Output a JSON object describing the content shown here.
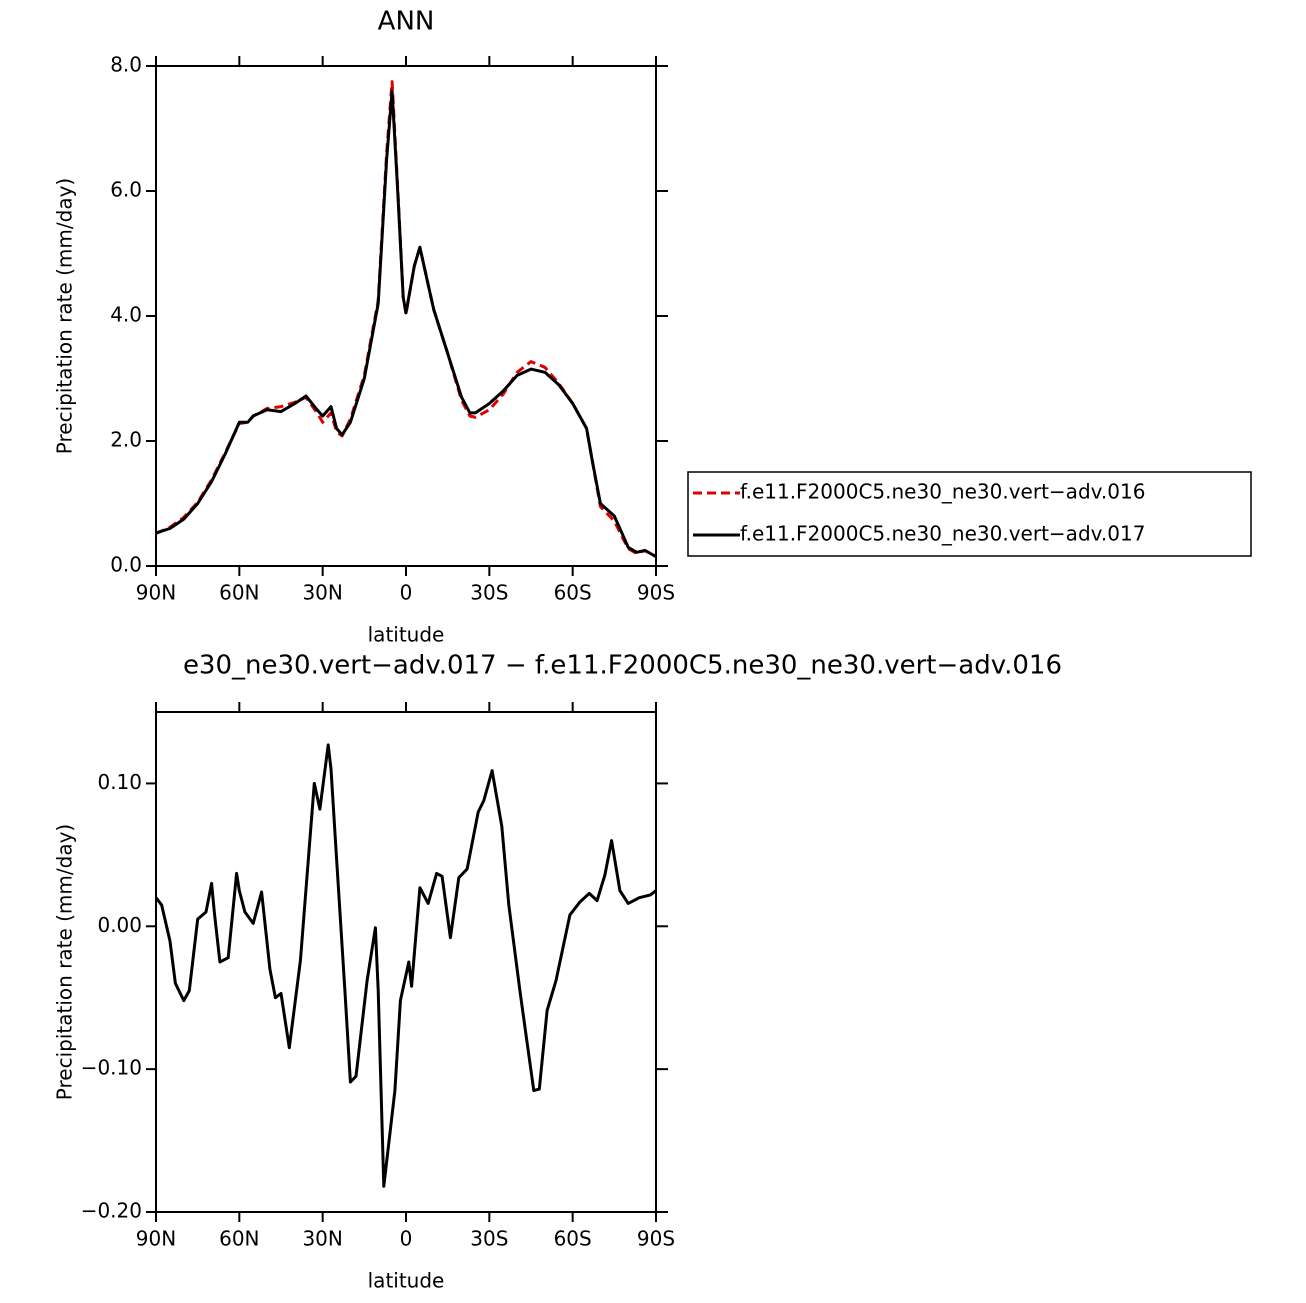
{
  "chart_data": [
    {
      "type": "line",
      "title": "ANN",
      "xlabel": "latitude",
      "ylabel": "Precipitation rate (mm/day)",
      "x": [
        90,
        85,
        80,
        75,
        70,
        65,
        62,
        60,
        57,
        55,
        50,
        45,
        40,
        36,
        32,
        30,
        27,
        25,
        23,
        20,
        15,
        10,
        7,
        5,
        3,
        1,
        0,
        -3,
        -5,
        -8,
        -10,
        -15,
        -20,
        -23,
        -25,
        -30,
        -35,
        -40,
        -45,
        -50,
        -55,
        -60,
        -65,
        -67,
        -70,
        -75,
        -78,
        -80,
        -83,
        -86,
        -88,
        -90
      ],
      "series": [
        {
          "name": "f.e11.F2000C5.ne30_ne30.vert−adv.016",
          "color": "#e00000",
          "dashed": true,
          "values": [
            0.52,
            0.62,
            0.78,
            1.02,
            1.38,
            1.82,
            2.1,
            2.28,
            2.3,
            2.4,
            2.52,
            2.55,
            2.62,
            2.7,
            2.45,
            2.3,
            2.45,
            2.15,
            2.08,
            2.35,
            3.05,
            4.25,
            6.6,
            7.75,
            6.05,
            4.3,
            4.03,
            4.8,
            5.1,
            4.5,
            4.1,
            3.4,
            2.65,
            2.4,
            2.38,
            2.5,
            2.75,
            3.1,
            3.27,
            3.18,
            2.92,
            2.6,
            2.2,
            1.7,
            0.95,
            0.72,
            0.45,
            0.28,
            0.2,
            0.25,
            0.2,
            0.15
          ]
        },
        {
          "name": "f.e11.F2000C5.ne30_ne30.vert−adv.017",
          "color": "#000000",
          "dashed": false,
          "values": [
            0.53,
            0.6,
            0.75,
            1.0,
            1.35,
            1.8,
            2.1,
            2.3,
            2.3,
            2.4,
            2.5,
            2.47,
            2.6,
            2.72,
            2.5,
            2.4,
            2.55,
            2.2,
            2.1,
            2.3,
            3.0,
            4.2,
            6.5,
            7.6,
            6.0,
            4.3,
            4.05,
            4.8,
            5.1,
            4.5,
            4.1,
            3.4,
            2.7,
            2.45,
            2.45,
            2.6,
            2.8,
            3.05,
            3.15,
            3.1,
            2.9,
            2.6,
            2.2,
            1.7,
            1.0,
            0.8,
            0.5,
            0.3,
            0.22,
            0.25,
            0.2,
            0.15
          ]
        }
      ],
      "xlim": [
        90,
        -90
      ],
      "ylim": [
        0,
        8
      ],
      "xticks": [
        {
          "value": 90,
          "label": "90N"
        },
        {
          "value": 60,
          "label": "60N"
        },
        {
          "value": 30,
          "label": "30N"
        },
        0,
        {
          "value": -30,
          "label": "30S"
        },
        {
          "value": -60,
          "label": "60S"
        },
        {
          "value": -90,
          "label": "90S"
        }
      ],
      "yticks": [
        {
          "value": 0,
          "label": "0.0"
        },
        {
          "value": 2,
          "label": "2.0"
        },
        {
          "value": 4,
          "label": "4.0"
        },
        {
          "value": 6,
          "label": "6.0"
        },
        {
          "value": 8,
          "label": "8.0"
        }
      ],
      "legend": "right"
    },
    {
      "type": "line",
      "title": "e30_ne30.vert−adv.017 − f.e11.F2000C5.ne30_ne30.vert−adv.016",
      "xlabel": "latitude",
      "ylabel": "Precipitation rate (mm/day)",
      "x": [
        90,
        88,
        85,
        83,
        80,
        78,
        75,
        72,
        70,
        69,
        67,
        64,
        61,
        60,
        58,
        55,
        52,
        49,
        47,
        45,
        42,
        38,
        33,
        31,
        28,
        27,
        25,
        22,
        20,
        18,
        14,
        11,
        10,
        8,
        4,
        2,
        -1,
        -2,
        -5,
        -8,
        -11,
        -13,
        -16,
        -19,
        -22,
        -26,
        -28,
        -31,
        -34.5,
        -37,
        -41,
        -43.5,
        -46,
        -48,
        -50.8,
        -54,
        -59,
        -62.6,
        -66,
        -68.8,
        -71.6,
        -74,
        -77,
        -80,
        -84,
        -88,
        -90
      ],
      "series": [
        {
          "color": "#000000",
          "dashed": false,
          "values": [
            0.02,
            0.015,
            -0.01,
            -0.04,
            -0.052,
            -0.045,
            0.005,
            0.01,
            0.03,
            0.01,
            -0.025,
            -0.022,
            0.037,
            0.025,
            0.01,
            0.002,
            0.024,
            -0.03,
            -0.05,
            -0.047,
            -0.085,
            -0.024,
            0.1,
            0.082,
            0.127,
            0.11,
            0.047,
            -0.045,
            -0.109,
            -0.105,
            -0.038,
            -0.001,
            -0.045,
            -0.182,
            -0.115,
            -0.052,
            -0.025,
            -0.042,
            0.027,
            0.016,
            0.037,
            0.035,
            -0.008,
            0.034,
            0.04,
            0.08,
            0.088,
            0.109,
            0.07,
            0.015,
            -0.045,
            -0.08,
            -0.115,
            -0.114,
            -0.059,
            -0.038,
            0.008,
            0.017,
            0.023,
            0.018,
            0.036,
            0.06,
            0.025,
            0.016,
            0.02,
            0.022,
            0.025
          ]
        }
      ],
      "xlim": [
        90,
        -90
      ],
      "ylim": [
        -0.2,
        0.15
      ],
      "xticks": [
        {
          "value": 90,
          "label": "90N"
        },
        {
          "value": 60,
          "label": "60N"
        },
        {
          "value": 30,
          "label": "30N"
        },
        0,
        {
          "value": -30,
          "label": "30S"
        },
        {
          "value": -60,
          "label": "60S"
        },
        {
          "value": -90,
          "label": "90S"
        }
      ],
      "yticks": [
        {
          "value": -0.2,
          "label": "−0.20"
        },
        {
          "value": -0.1,
          "label": "−0.10"
        },
        {
          "value": 0,
          "label": "0.00"
        },
        {
          "value": 0.1,
          "label": "0.10"
        }
      ]
    }
  ]
}
